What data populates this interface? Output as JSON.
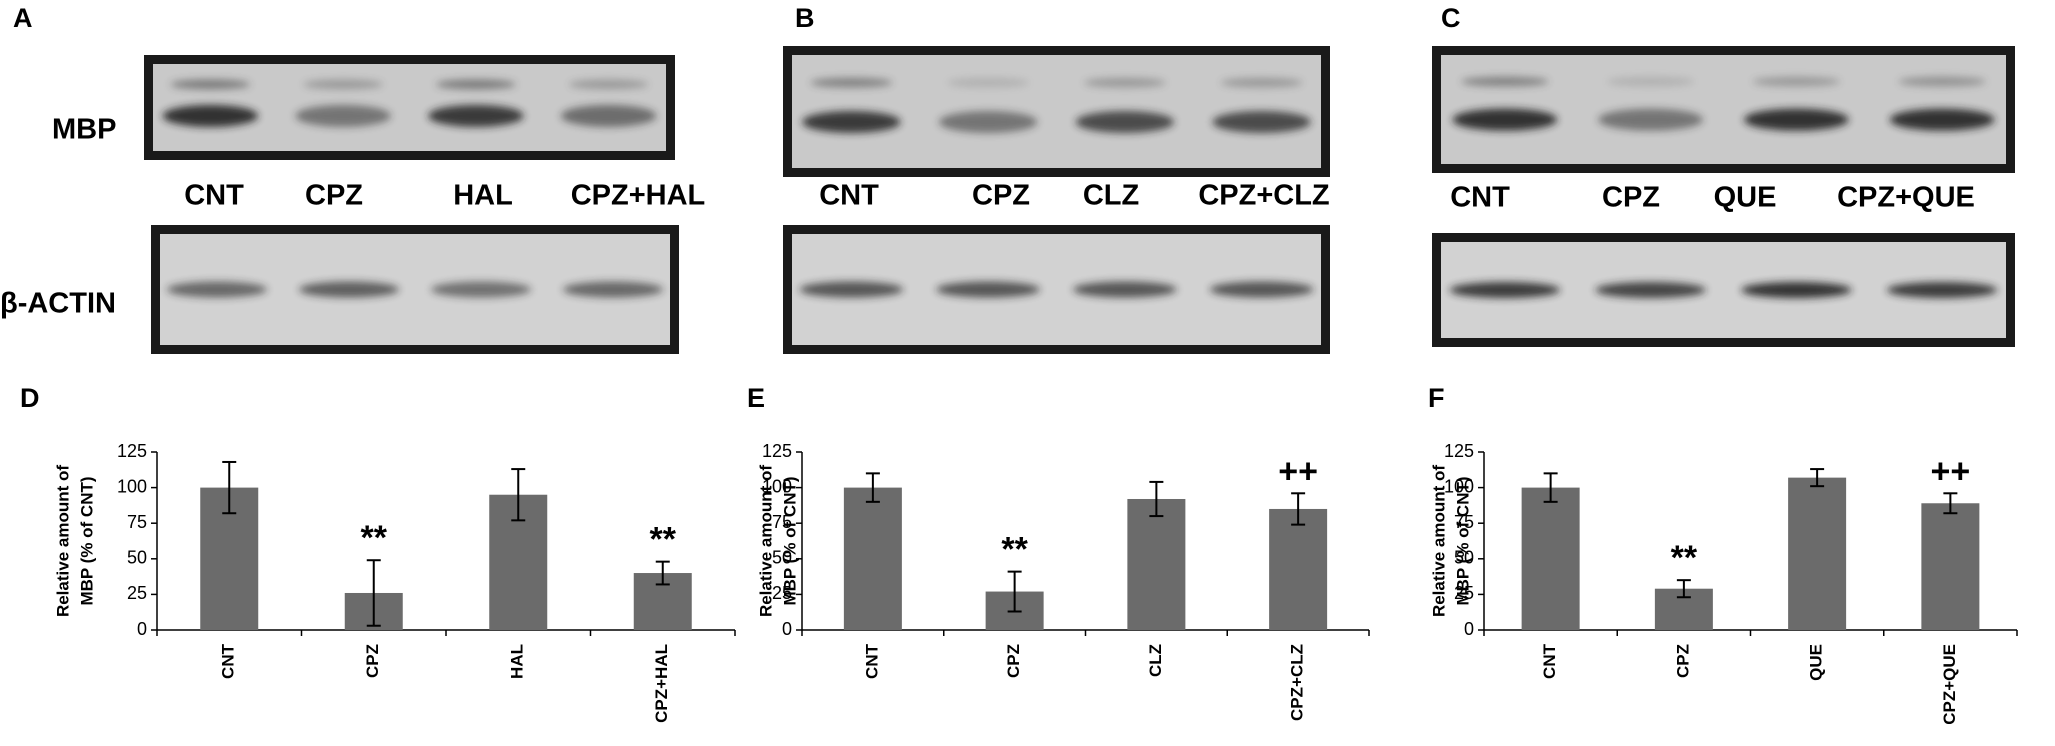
{
  "row_labels": [
    "MBP",
    "β-ACTIN"
  ],
  "blots": [
    {
      "label": "A",
      "lanes": [
        "CNT",
        "CPZ",
        "HAL",
        "CPZ+HAL"
      ]
    },
    {
      "label": "B",
      "lanes": [
        "CNT",
        "CPZ",
        "CLZ",
        "CPZ+CLZ"
      ]
    },
    {
      "label": "C",
      "lanes": [
        "CNT",
        "CPZ",
        "QUE",
        "CPZ+QUE"
      ]
    }
  ],
  "chart_data": [
    {
      "type": "bar",
      "label": "D",
      "ylabel": [
        "Relative amount of",
        "MBP (% of CNT)"
      ],
      "categories": [
        "CNT",
        "CPZ",
        "HAL",
        "CPZ+HAL"
      ],
      "values": [
        100,
        26,
        95,
        40
      ],
      "errors": [
        18,
        23,
        18,
        8
      ],
      "annotations": [
        null,
        "**",
        null,
        "**"
      ],
      "color": "#6b6b6b",
      "ylim": [
        0,
        125
      ],
      "yticks": [
        0,
        25,
        50,
        75,
        100,
        125
      ]
    },
    {
      "type": "bar",
      "label": "E",
      "ylabel": [
        "Relative amount of",
        "MBP (% of CNT)"
      ],
      "categories": [
        "CNT",
        "CPZ",
        "CLZ",
        "CPZ+CLZ"
      ],
      "values": [
        100,
        27,
        92,
        85
      ],
      "errors": [
        10,
        14,
        12,
        11
      ],
      "annotations": [
        null,
        "**",
        null,
        "++"
      ],
      "color": "#6b6b6b",
      "ylim": [
        0,
        125
      ],
      "yticks": [
        0,
        25,
        50,
        75,
        100,
        125
      ]
    },
    {
      "type": "bar",
      "label": "F",
      "ylabel": [
        "Relative amount of",
        "MBP (% of CNT)"
      ],
      "categories": [
        "CNT",
        "CPZ",
        "QUE",
        "CPZ+QUE"
      ],
      "values": [
        100,
        29,
        107,
        89
      ],
      "errors": [
        10,
        6,
        6,
        7
      ],
      "annotations": [
        null,
        "**",
        null,
        "++"
      ],
      "color": "#6b6b6b",
      "ylim": [
        0,
        125
      ],
      "yticks": [
        0,
        25,
        50,
        75,
        100,
        125
      ]
    }
  ]
}
